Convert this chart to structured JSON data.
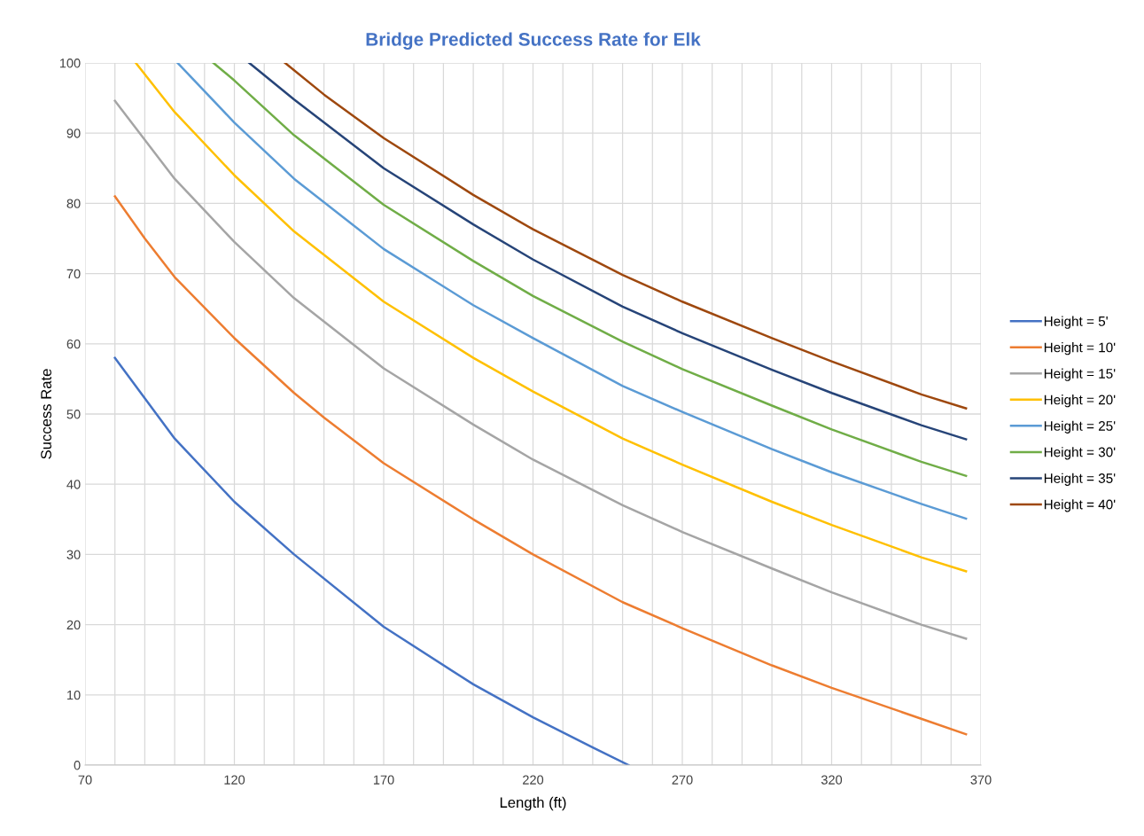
{
  "chart_data": {
    "type": "line",
    "title": "Bridge Predicted Success Rate for Elk",
    "xlabel": "Length (ft)",
    "ylabel": "Success Rate",
    "xlim": [
      70,
      370
    ],
    "ylim": [
      0,
      100
    ],
    "xticks": [
      70,
      {
        "value": 80,
        "label": null
      },
      {
        "value": 90,
        "label": null
      },
      {
        "value": 100,
        "label": null
      },
      {
        "value": 110,
        "label": null
      },
      120,
      {
        "value": 130,
        "label": null
      },
      {
        "value": 140,
        "label": null
      },
      {
        "value": 150,
        "label": null
      },
      {
        "value": 160,
        "label": null
      },
      170,
      {
        "value": 180,
        "label": null
      },
      {
        "value": 190,
        "label": null
      },
      {
        "value": 200,
        "label": null
      },
      {
        "value": 210,
        "label": null
      },
      220,
      {
        "value": 230,
        "label": null
      },
      {
        "value": 240,
        "label": null
      },
      {
        "value": 250,
        "label": null
      },
      {
        "value": 260,
        "label": null
      },
      270,
      {
        "value": 280,
        "label": null
      },
      {
        "value": 290,
        "label": null
      },
      {
        "value": 300,
        "label": null
      },
      {
        "value": 310,
        "label": null
      },
      320,
      {
        "value": 330,
        "label": null
      },
      {
        "value": 340,
        "label": null
      },
      {
        "value": 350,
        "label": null
      },
      {
        "value": 360,
        "label": null
      },
      370
    ],
    "yticks": [
      0,
      10,
      20,
      30,
      40,
      50,
      60,
      70,
      80,
      90,
      100
    ],
    "grid": true,
    "legend": "right",
    "marker": "none",
    "line_style": "solid",
    "series": [
      {
        "name": "Height = 5'",
        "color": "#4472c4",
        "x": [
          80,
          100,
          120,
          140,
          170,
          200,
          220,
          240,
          252
        ],
        "values": [
          58,
          46.5,
          37.5,
          30,
          19.7,
          11.5,
          6.8,
          2.5,
          0
        ]
      },
      {
        "name": "Height = 10'",
        "color": "#ed7d31",
        "x": [
          80,
          90,
          100,
          120,
          140,
          150,
          170,
          200,
          220,
          250,
          270,
          300,
          320,
          350,
          365
        ],
        "values": [
          81,
          75,
          69.5,
          60.8,
          53,
          49.5,
          43,
          35,
          30,
          23.2,
          19.5,
          14.2,
          11,
          6.6,
          4.4
        ]
      },
      {
        "name": "Height = 15'",
        "color": "#a5a5a5",
        "x": [
          80,
          100,
          120,
          140,
          170,
          200,
          220,
          250,
          270,
          300,
          320,
          350,
          365
        ],
        "values": [
          94.6,
          83.5,
          74.5,
          66.5,
          56.5,
          48.5,
          43.5,
          37,
          33.2,
          28,
          24.6,
          20,
          18
        ]
      },
      {
        "name": "Height = 20'",
        "color": "#ffc000",
        "x": [
          87,
          100,
          120,
          140,
          170,
          200,
          220,
          250,
          270,
          300,
          320,
          350,
          365
        ],
        "values": [
          100,
          93,
          84,
          76,
          66,
          58,
          53.2,
          46.5,
          42.8,
          37.5,
          34.2,
          29.6,
          27.6
        ]
      },
      {
        "name": "Height = 25'",
        "color": "#5b9bd5",
        "x": [
          101,
          120,
          140,
          170,
          200,
          220,
          250,
          270,
          300,
          320,
          350,
          365
        ],
        "values": [
          100,
          91.5,
          83.5,
          73.5,
          65.5,
          60.8,
          54,
          50.3,
          45,
          41.7,
          37.2,
          35.1
        ]
      },
      {
        "name": "Height = 30'",
        "color": "#70ad47",
        "x": [
          113,
          120,
          140,
          170,
          200,
          220,
          250,
          270,
          300,
          320,
          350,
          365
        ],
        "values": [
          100,
          97.5,
          89.7,
          79.8,
          71.8,
          66.8,
          60.3,
          56.4,
          51.2,
          47.8,
          43.2,
          41.2
        ]
      },
      {
        "name": "Height = 35'",
        "color": "#264478",
        "x": [
          125,
          140,
          170,
          200,
          220,
          250,
          270,
          300,
          320,
          350,
          365
        ],
        "values": [
          100,
          94.8,
          85,
          77,
          72,
          65.3,
          61.5,
          56.3,
          53,
          48.4,
          46.4
        ]
      },
      {
        "name": "Height = 40'",
        "color": "#9e480e",
        "x": [
          137,
          150,
          170,
          200,
          220,
          250,
          270,
          300,
          320,
          350,
          365
        ],
        "values": [
          100,
          95.5,
          89.3,
          81.2,
          76.3,
          69.8,
          66,
          60.8,
          57.5,
          52.8,
          50.8
        ]
      }
    ]
  }
}
